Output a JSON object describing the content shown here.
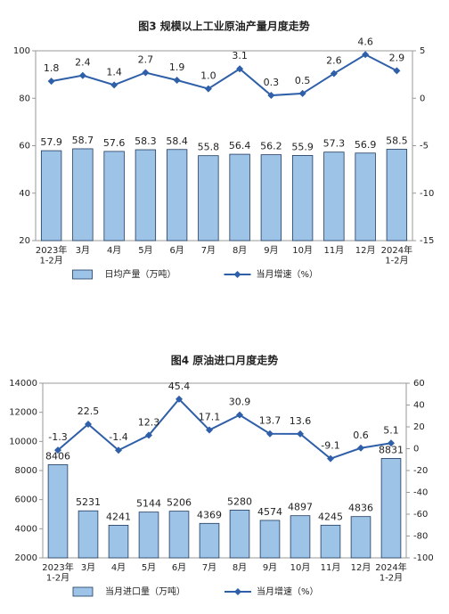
{
  "chart_data": [
    {
      "type": "combo",
      "title": "图3  规模以上工业原油产量月度走势",
      "categories": [
        "2023年\n1-2月",
        "3月",
        "4月",
        "5月",
        "6月",
        "7月",
        "8月",
        "9月",
        "10月",
        "11月",
        "12月",
        "2024年\n1-2月"
      ],
      "series": [
        {
          "name": "日均产量（万吨）",
          "type": "bar",
          "color": "#9dc3e6",
          "values": [
            57.9,
            58.7,
            57.6,
            58.3,
            58.4,
            55.8,
            56.4,
            56.2,
            55.9,
            57.3,
            56.9,
            58.5
          ]
        },
        {
          "name": "当月增速（%）",
          "type": "line",
          "axis": "y2",
          "color": "#2e5fa8",
          "values": [
            1.8,
            2.4,
            1.4,
            2.7,
            1.9,
            1.0,
            3.1,
            0.3,
            0.5,
            2.6,
            4.6,
            2.9
          ],
          "value_labels": [
            "1.8",
            "2.4",
            "1.4",
            "2.7",
            "1.9",
            "1.0",
            "3.1",
            "0.3",
            "0.5",
            "2.6",
            "4.6",
            "2.9"
          ]
        }
      ],
      "ylim": [
        20,
        100
      ],
      "yticks": [
        20,
        40,
        60,
        80,
        100
      ],
      "y2lim": [
        -15,
        5
      ],
      "y2ticks": [
        -15,
        -10,
        -5,
        0,
        5
      ]
    },
    {
      "type": "combo",
      "title": "图4  原油进口月度走势",
      "categories": [
        "2023年\n1-2月",
        "3月",
        "4月",
        "5月",
        "6月",
        "7月",
        "8月",
        "9月",
        "10月",
        "11月",
        "12月",
        "2024年\n1-2月"
      ],
      "series": [
        {
          "name": "当月进口量（万吨）",
          "type": "bar",
          "color": "#9dc3e6",
          "values": [
            8406,
            5231,
            4241,
            5144,
            5206,
            4369,
            5280,
            4574,
            4897,
            4245,
            4836,
            8831
          ]
        },
        {
          "name": "当月增速（%）",
          "type": "line",
          "axis": "y2",
          "color": "#2e5fa8",
          "values": [
            -1.3,
            22.5,
            -1.4,
            12.3,
            45.4,
            17.1,
            30.9,
            13.7,
            13.6,
            -9.1,
            0.6,
            5.1
          ]
        }
      ],
      "ylim": [
        2000,
        14000
      ],
      "yticks": [
        2000,
        4000,
        6000,
        8000,
        10000,
        12000,
        14000
      ],
      "y2lim": [
        -100,
        60
      ],
      "y2ticks": [
        -100,
        -80,
        -60,
        -40,
        -20,
        0,
        20,
        40,
        60
      ]
    }
  ]
}
